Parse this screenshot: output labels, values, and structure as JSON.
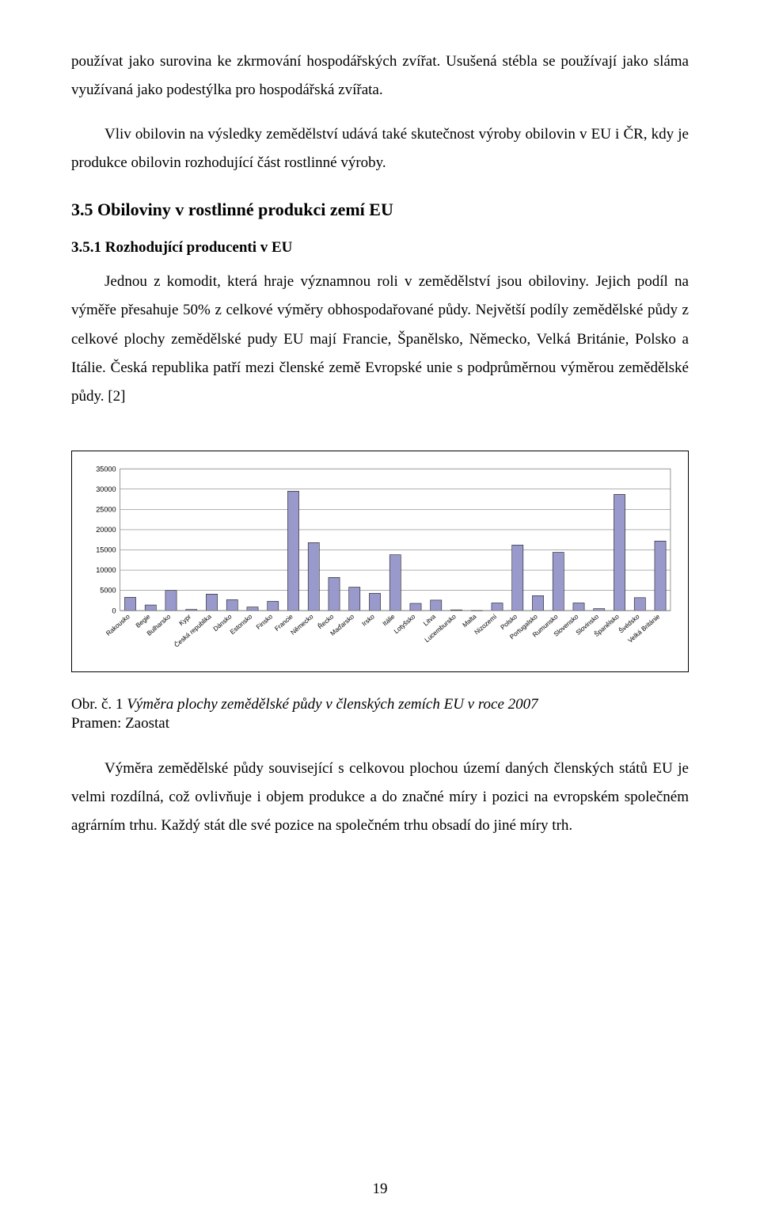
{
  "paragraphs": {
    "p1": "používat jako surovina ke zkrmování hospodářských zvířat. Usušená stébla se používají jako sláma využívaná jako podestýlka pro hospodářská zvířata.",
    "p2": "Vliv obilovin na výsledky zemědělství udává také skutečnost výroby obilovin v EU i ČR, kdy je produkce obilovin rozhodující část rostlinné výroby.",
    "p3": "Jednou z komodit, která hraje významnou roli v zemědělství jsou obiloviny. Jejich podíl na výměře přesahuje 50% z celkové výměry obhospodařované půdy. Největší podíly zemědělské půdy z celkové plochy zemědělské pudy EU mají Francie, Španělsko, Německo, Velká Británie, Polsko a Itálie. Česká republika patří mezi členské země Evropské unie s podprůměrnou výměrou zemědělské půdy. [2]",
    "p4": "Výměra zemědělské půdy související s celkovou plochou území daných členských států EU je velmi rozdílná, což ovlivňuje i objem produkce a do značné míry i pozici na evropském společném agrárním trhu. Každý stát dle své pozice na společném trhu obsadí do jiné míry trh."
  },
  "headings": {
    "h2": "3.5  Obiloviny v rostlinné produkci zemí EU",
    "h3": "3.5.1   Rozhodující producenti v EU"
  },
  "caption": {
    "prefix": "Obr. č. 1 ",
    "title": "Výměra plochy zemědělské půdy  v členských zemích EU v roce 2007"
  },
  "source": "Pramen: Zaostat",
  "page_number": "19",
  "chart": {
    "type": "bar",
    "background_color": "#ffffff",
    "plot_border_color": "#808080",
    "grid_color": "#808080",
    "bar_fill": "#9999cc",
    "bar_stroke": "#000000",
    "label_color": "#000000",
    "tick_font_size": 9,
    "label_font_size": 8,
    "ylim": [
      0,
      35000
    ],
    "ytick_step": 5000,
    "yticks": [
      0,
      5000,
      10000,
      15000,
      20000,
      25000,
      30000,
      35000
    ],
    "bar_width": 0.55,
    "categories": [
      "Rakousko",
      "Begie",
      "Bulharsko",
      "Kypr",
      "Česká republika",
      "Dánsko",
      "Estonsko",
      "Finsko",
      "Francie",
      "Německo",
      "Řecko",
      "Maďarsko",
      "Irsko",
      "Itálie",
      "Lotyšsko",
      "Litva",
      "Lucembursko",
      "Malta",
      "Nizozemí",
      "Polsko",
      "Portugalsko",
      "Rumunsko",
      "Slovensko",
      "Slovinsko",
      "Španělsko",
      "Švédsko",
      "Velká Británie"
    ],
    "values": [
      3300,
      1400,
      5000,
      300,
      4100,
      2700,
      900,
      2300,
      29500,
      16800,
      8200,
      5800,
      4300,
      13800,
      1800,
      2600,
      200,
      40,
      1900,
      16200,
      3700,
      14400,
      1900,
      500,
      28700,
      3200,
      17200
    ]
  }
}
